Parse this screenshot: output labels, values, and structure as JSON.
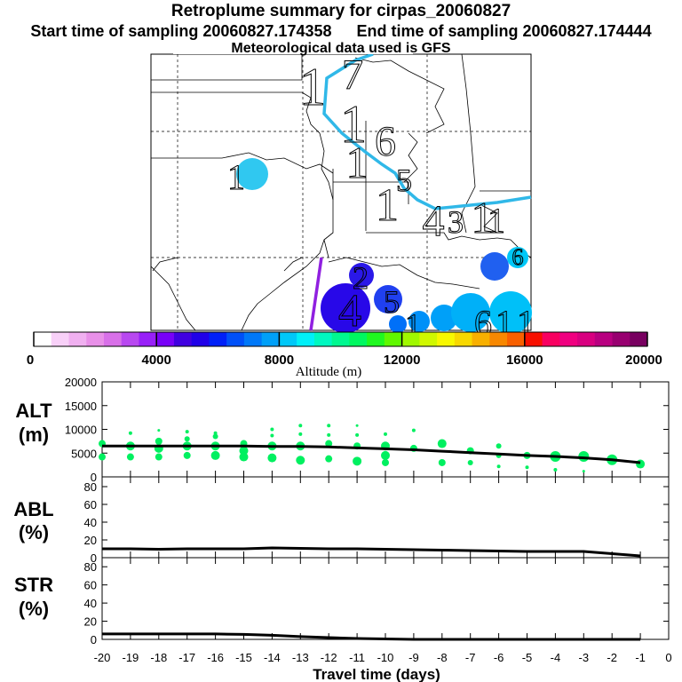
{
  "title": "Retroplume summary for cirpas_20060827",
  "sampling": {
    "start_label": "Start time of sampling 20060827.174358",
    "end_label": "End time of sampling 20060827.174444"
  },
  "met_label": "Meteorological data used is GFS",
  "colorbar": {
    "label": "Altitude (m)",
    "ticks": [
      "0",
      "4000",
      "8000",
      "12000",
      "16000",
      "20000"
    ],
    "range": [
      0,
      20000
    ],
    "colors": [
      "#ffffff",
      "#f8d0f8",
      "#f0b0f0",
      "#e890e8",
      "#d870e8",
      "#b848f0",
      "#9820f8",
      "#7800f8",
      "#4000e0",
      "#2000e8",
      "#0020f8",
      "#0050f8",
      "#0078f8",
      "#00a0f8",
      "#00c8f8",
      "#00f0f8",
      "#00f8c0",
      "#00f890",
      "#00f860",
      "#20f820",
      "#60f800",
      "#a0f800",
      "#d0f800",
      "#f8f800",
      "#f8d800",
      "#f8b000",
      "#f88800",
      "#f86000",
      "#f81000",
      "#f80060",
      "#f00080",
      "#d80080",
      "#b80080",
      "#980070",
      "#780060"
    ]
  },
  "map": {
    "markers": [
      {
        "label": "1",
        "kind": "big"
      },
      {
        "label": "7",
        "kind": "big"
      },
      {
        "label": "1",
        "kind": "big"
      },
      {
        "label": "6",
        "kind": "big"
      },
      {
        "label": "1",
        "kind": "big"
      },
      {
        "label": "5",
        "kind": "big"
      },
      {
        "label": "1",
        "kind": "big"
      },
      {
        "label": "4",
        "kind": "big"
      },
      {
        "label": "1",
        "kind": "big"
      },
      {
        "label": "3",
        "kind": "big"
      },
      {
        "label": "1",
        "kind": "big"
      },
      {
        "label": "1",
        "kind": "big"
      },
      {
        "label": "1",
        "kind": "big"
      },
      {
        "label": "6",
        "kind": "big"
      },
      {
        "label": "4",
        "kind": "big"
      },
      {
        "label": "2",
        "kind": "big"
      },
      {
        "label": "5",
        "kind": "big"
      },
      {
        "label": "1",
        "kind": "big"
      },
      {
        "label": "6",
        "kind": "big"
      },
      {
        "label": "1",
        "kind": "big"
      },
      {
        "label": "1",
        "kind": "big"
      }
    ]
  },
  "chart_data": [
    {
      "type": "scatter",
      "panel": "ALT",
      "ylabel": "ALT (m)",
      "ylim": [
        0,
        20000
      ],
      "yticks": [
        "0",
        "5000",
        "10000",
        "15000",
        "20000"
      ],
      "xlim": [
        -20,
        0
      ],
      "mean_line": {
        "x": [
          -20,
          -19,
          -18,
          -17,
          -16,
          -15,
          -14,
          -13,
          -12,
          -11,
          -10,
          -9,
          -8,
          -7,
          -6,
          -5,
          -4,
          -3,
          -2,
          -1
        ],
        "y": [
          6500,
          6500,
          6500,
          6500,
          6500,
          6500,
          6400,
          6400,
          6300,
          6100,
          5900,
          5700,
          5400,
          5100,
          4800,
          4500,
          4300,
          4000,
          3600,
          3000
        ]
      },
      "points": [
        {
          "x": -20,
          "y": 7000,
          "r": 4
        },
        {
          "x": -20,
          "y": 4200,
          "r": 4
        },
        {
          "x": -19,
          "y": 9200,
          "r": 2
        },
        {
          "x": -19,
          "y": 6500,
          "r": 5
        },
        {
          "x": -19,
          "y": 4200,
          "r": 4
        },
        {
          "x": -18,
          "y": 9800,
          "r": 1.5
        },
        {
          "x": -18,
          "y": 7500,
          "r": 4
        },
        {
          "x": -18,
          "y": 6000,
          "r": 5
        },
        {
          "x": -18,
          "y": 4200,
          "r": 4
        },
        {
          "x": -17,
          "y": 9500,
          "r": 2
        },
        {
          "x": -17,
          "y": 8000,
          "r": 3
        },
        {
          "x": -17,
          "y": 6500,
          "r": 5
        },
        {
          "x": -17,
          "y": 4500,
          "r": 4
        },
        {
          "x": -16,
          "y": 9200,
          "r": 2
        },
        {
          "x": -16,
          "y": 8500,
          "r": 3
        },
        {
          "x": -16,
          "y": 6500,
          "r": 5
        },
        {
          "x": -16,
          "y": 4500,
          "r": 5
        },
        {
          "x": -15,
          "y": 7000,
          "r": 4
        },
        {
          "x": -15,
          "y": 5500,
          "r": 5
        },
        {
          "x": -15,
          "y": 4200,
          "r": 5
        },
        {
          "x": -14,
          "y": 10000,
          "r": 2
        },
        {
          "x": -14,
          "y": 8700,
          "r": 2
        },
        {
          "x": -14,
          "y": 6500,
          "r": 5
        },
        {
          "x": -14,
          "y": 4000,
          "r": 5
        },
        {
          "x": -13,
          "y": 10800,
          "r": 2
        },
        {
          "x": -13,
          "y": 9000,
          "r": 2
        },
        {
          "x": -13,
          "y": 6500,
          "r": 5
        },
        {
          "x": -13,
          "y": 3500,
          "r": 5
        },
        {
          "x": -12,
          "y": 10800,
          "r": 2
        },
        {
          "x": -12,
          "y": 8800,
          "r": 2
        },
        {
          "x": -12,
          "y": 7000,
          "r": 4
        },
        {
          "x": -12,
          "y": 3800,
          "r": 4
        },
        {
          "x": -11,
          "y": 10800,
          "r": 1.5
        },
        {
          "x": -11,
          "y": 8800,
          "r": 2
        },
        {
          "x": -11,
          "y": 6500,
          "r": 4
        },
        {
          "x": -11,
          "y": 3300,
          "r": 5
        },
        {
          "x": -10,
          "y": 9000,
          "r": 2
        },
        {
          "x": -10,
          "y": 6500,
          "r": 5
        },
        {
          "x": -10,
          "y": 4500,
          "r": 5
        },
        {
          "x": -10,
          "y": 3000,
          "r": 4
        },
        {
          "x": -9,
          "y": 9800,
          "r": 2
        },
        {
          "x": -9,
          "y": 6000,
          "r": 4
        },
        {
          "x": -8,
          "y": 7000,
          "r": 5
        },
        {
          "x": -8,
          "y": 3000,
          "r": 4
        },
        {
          "x": -7,
          "y": 5500,
          "r": 4
        },
        {
          "x": -7,
          "y": 3000,
          "r": 3
        },
        {
          "x": -6,
          "y": 6500,
          "r": 3
        },
        {
          "x": -6,
          "y": 4500,
          "r": 3
        },
        {
          "x": -6,
          "y": 2200,
          "r": 2
        },
        {
          "x": -5,
          "y": 4500,
          "r": 4
        },
        {
          "x": -5,
          "y": 2000,
          "r": 2
        },
        {
          "x": -4,
          "y": 4300,
          "r": 6
        },
        {
          "x": -4,
          "y": 1500,
          "r": 2
        },
        {
          "x": -3,
          "y": 4300,
          "r": 6
        },
        {
          "x": -3,
          "y": 1200,
          "r": 1.5
        },
        {
          "x": -2,
          "y": 3600,
          "r": 6
        },
        {
          "x": -1,
          "y": 2700,
          "r": 5
        }
      ]
    },
    {
      "type": "line",
      "panel": "ABL",
      "ylabel": "ABL (%)",
      "ylim": [
        0,
        90
      ],
      "yticks": [
        "0",
        "20",
        "40",
        "60",
        "80"
      ],
      "xlim": [
        -20,
        0
      ],
      "x": [
        -20,
        -19,
        -18,
        -17,
        -16,
        -15,
        -14,
        -13,
        -12,
        -11,
        -10,
        -9,
        -8,
        -7,
        -6,
        -5,
        -4,
        -3,
        -2,
        -1
      ],
      "y": [
        10,
        10,
        9.5,
        10,
        10,
        10,
        11,
        10.5,
        10,
        10,
        9.5,
        9,
        8.5,
        8,
        7.5,
        7,
        7,
        7,
        4.5,
        2
      ]
    },
    {
      "type": "line",
      "panel": "STR",
      "ylabel": "STR (%)",
      "ylim": [
        0,
        90
      ],
      "yticks": [
        "0",
        "20",
        "40",
        "60",
        "80"
      ],
      "xlim": [
        -20,
        0
      ],
      "xlabel": "Travel time (days)",
      "xticks": [
        "-20",
        "-19",
        "-18",
        "-17",
        "-16",
        "-15",
        "-14",
        "-13",
        "-12",
        "-11",
        "-10",
        "-9",
        "-8",
        "-7",
        "-6",
        "-5",
        "-4",
        "-3",
        "-2",
        "-1",
        "0"
      ],
      "x": [
        -20,
        -19,
        -18,
        -17,
        -16,
        -15,
        -14,
        -13,
        -12,
        -11,
        -10,
        -9,
        -8,
        -7,
        -6,
        -5,
        -4,
        -3,
        -2,
        -1
      ],
      "y": [
        6,
        6,
        6,
        6,
        6,
        5.5,
        4.5,
        3,
        2,
        1,
        0.5,
        0,
        0,
        0,
        0,
        0,
        0,
        0,
        0,
        0
      ]
    }
  ]
}
